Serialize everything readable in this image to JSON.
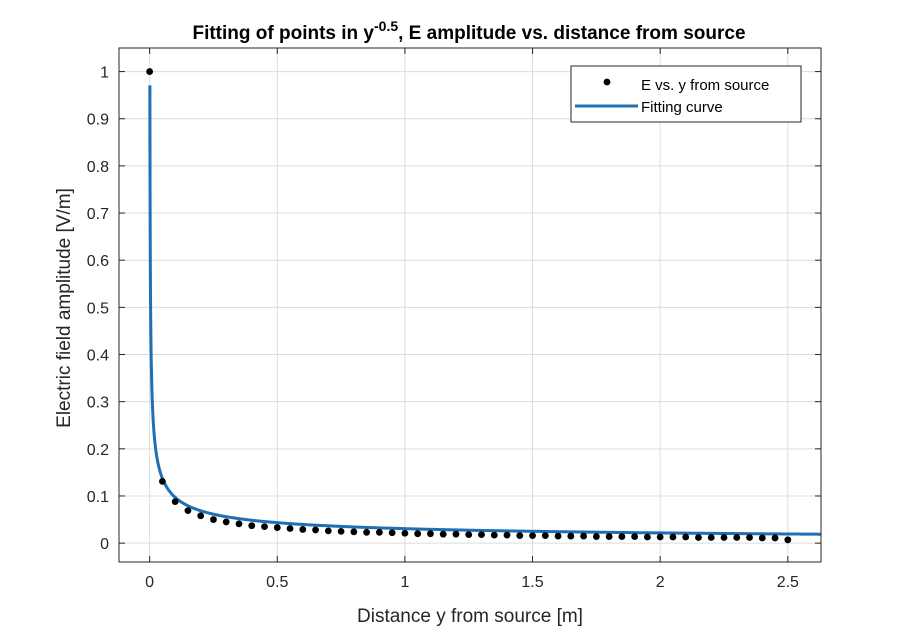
{
  "chart_data": {
    "type": "scatter",
    "title_main": "Fitting of points in y",
    "title_exponent": "-0.5",
    "title_rest": ", E amplitude vs. distance from source",
    "xlabel": "Distance y from source [m]",
    "ylabel": "Electric field amplitude [V/m]",
    "xlim": [
      -0.12,
      2.63
    ],
    "ylim": [
      -0.04,
      1.05
    ],
    "xticks": [
      0,
      0.5,
      1,
      1.5,
      2,
      2.5
    ],
    "xtick_labels": [
      "0",
      "0.5",
      "1",
      "1.5",
      "2",
      "2.5"
    ],
    "yticks": [
      0,
      0.1,
      0.2,
      0.3,
      0.4,
      0.5,
      0.6,
      0.7,
      0.8,
      0.9,
      1
    ],
    "ytick_labels": [
      "0",
      "0.1",
      "0.2",
      "0.3",
      "0.4",
      "0.5",
      "0.6",
      "0.7",
      "0.8",
      "0.9",
      "1"
    ],
    "grid": true,
    "legend_position": "top-right",
    "series": [
      {
        "name": "E vs. y from source",
        "kind": "markers",
        "color": "#000000",
        "x": [
          0,
          0.05,
          0.1,
          0.15,
          0.2,
          0.25,
          0.3,
          0.35,
          0.4,
          0.45,
          0.5,
          0.55,
          0.6,
          0.65,
          0.7,
          0.75,
          0.8,
          0.85,
          0.9,
          0.95,
          1.0,
          1.05,
          1.1,
          1.15,
          1.2,
          1.25,
          1.3,
          1.35,
          1.4,
          1.45,
          1.5,
          1.55,
          1.6,
          1.65,
          1.7,
          1.75,
          1.8,
          1.85,
          1.9,
          1.95,
          2.0,
          2.05,
          2.1,
          2.15,
          2.2,
          2.25,
          2.3,
          2.35,
          2.4,
          2.45,
          2.5
        ],
        "y": [
          1.0,
          0.131,
          0.088,
          0.069,
          0.058,
          0.05,
          0.045,
          0.041,
          0.037,
          0.035,
          0.033,
          0.031,
          0.029,
          0.028,
          0.026,
          0.025,
          0.024,
          0.023,
          0.023,
          0.022,
          0.021,
          0.02,
          0.02,
          0.019,
          0.019,
          0.018,
          0.018,
          0.017,
          0.017,
          0.016,
          0.016,
          0.016,
          0.015,
          0.015,
          0.015,
          0.014,
          0.014,
          0.014,
          0.014,
          0.013,
          0.013,
          0.013,
          0.013,
          0.012,
          0.012,
          0.012,
          0.012,
          0.012,
          0.011,
          0.011,
          0.007
        ]
      },
      {
        "name": "Fitting curve",
        "kind": "line",
        "color": "#1f6fb2",
        "model": "a*y^-0.5",
        "a": 0.0307,
        "x_start": 0.001,
        "x_end": 2.63
      }
    ]
  }
}
